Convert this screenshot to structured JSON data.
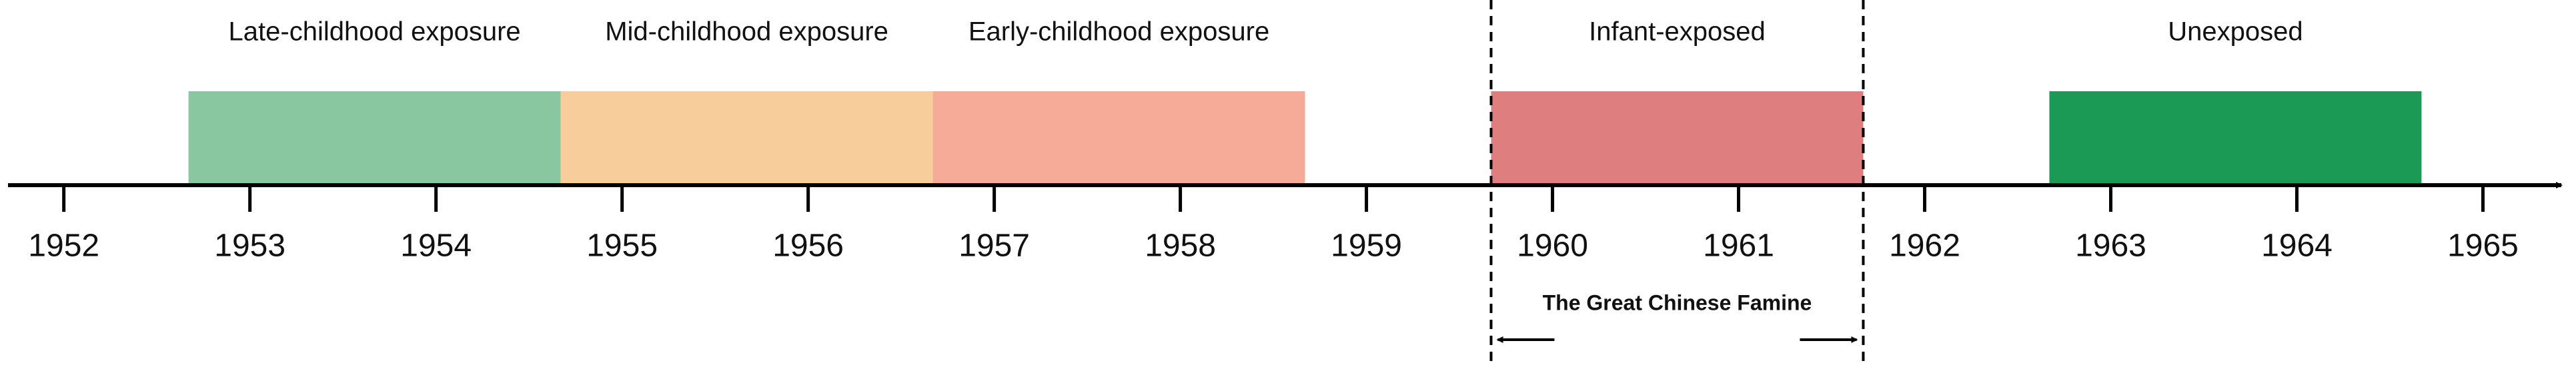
{
  "chart_data": {
    "type": "timeline",
    "xlim": [
      1951.7,
      1965.45
    ],
    "xticks": [
      1952,
      1953,
      1954,
      1955,
      1956,
      1957,
      1958,
      1959,
      1960,
      1961,
      1962,
      1963,
      1964,
      1965
    ],
    "periods": [
      {
        "name": "Late-childhood exposure",
        "color": "#88c7a0",
        "start": 1952.67,
        "end": 1954.67
      },
      {
        "name": "Mid-childhood exposure",
        "color": "#f8cd9c",
        "start": 1954.67,
        "end": 1956.67
      },
      {
        "name": "Early-childhood exposure",
        "color": "#f5ab98",
        "start": 1956.67,
        "end": 1958.67
      },
      {
        "name": "Infant-exposed",
        "color": "#de7e7f",
        "start": 1959.67,
        "end": 1961.67
      },
      {
        "name": "Unexposed",
        "color": "#1b9a55",
        "start": 1962.67,
        "end": 1964.67
      }
    ],
    "annotation": {
      "text": "The Great Chinese Famine",
      "start": 1959.67,
      "end": 1961.67
    }
  }
}
